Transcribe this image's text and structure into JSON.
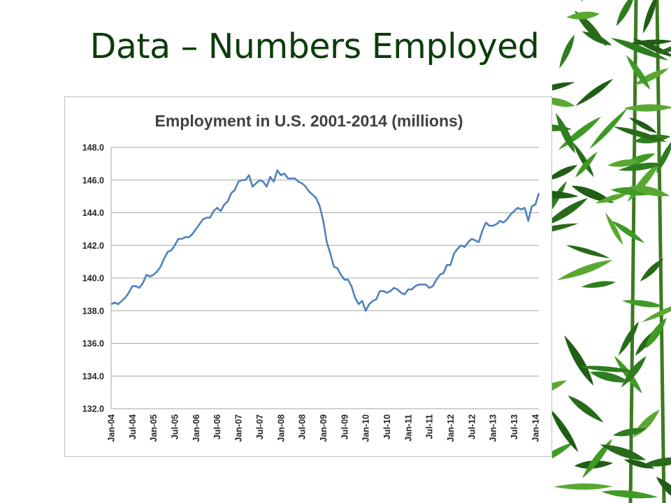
{
  "slide": {
    "title": "Data – Numbers Employed"
  },
  "colors": {
    "title": "#0b3d0b",
    "line": "#4f81bd",
    "grid": "#a6a6a6",
    "bamboo": "#2e7d1e"
  },
  "decoration": {
    "icon": "bamboo-leaves-icon"
  },
  "chart_data": {
    "type": "line",
    "title": "Employment in U.S. 2001-2014 (millions)",
    "xlabel": "",
    "ylabel": "",
    "ylim": [
      132,
      148
    ],
    "yticks": [
      "148.0",
      "146.0",
      "144.0",
      "142.0",
      "140.0",
      "138.0",
      "136.0",
      "134.0",
      "132.0"
    ],
    "xticks": [
      "Jan-04",
      "Jul-04",
      "Jan-05",
      "Jul-05",
      "Jan-06",
      "Jul-06",
      "Jan-07",
      "Jul-07",
      "Jan-08",
      "Jul-08",
      "Jan-09",
      "Jul-09",
      "Jan-10",
      "Jul-10",
      "Jan-11",
      "Jul-11",
      "Jan-12",
      "Jul-12",
      "Jan-13",
      "Jul-13",
      "Jan-14"
    ],
    "grid": true,
    "legend": "none",
    "series": [
      {
        "values": [
          138.4,
          138.5,
          138.4,
          138.6,
          138.8,
          139.1,
          139.5,
          139.5,
          139.4,
          139.7,
          140.2,
          140.1,
          140.2,
          140.4,
          140.7,
          141.2,
          141.6,
          141.7,
          142.0,
          142.4,
          142.4,
          142.5,
          142.5,
          142.7,
          143.0,
          143.3,
          143.6,
          143.7,
          143.7,
          144.1,
          144.3,
          144.1,
          144.5,
          144.7,
          145.2,
          145.4,
          145.9,
          146.0,
          146.0,
          146.3,
          145.6,
          145.8,
          146.0,
          145.9,
          145.6,
          146.2,
          145.9,
          146.6,
          146.3,
          146.4,
          146.1,
          146.1,
          146.1,
          145.9,
          145.8,
          145.6,
          145.3,
          145.1,
          144.9,
          144.4,
          143.5,
          142.2,
          141.5,
          140.7,
          140.6,
          140.2,
          139.9,
          139.9,
          139.5,
          138.8,
          138.4,
          138.6,
          138.0,
          138.4,
          138.6,
          138.7,
          139.2,
          139.2,
          139.1,
          139.2,
          139.4,
          139.3,
          139.1,
          139.0,
          139.3,
          139.3,
          139.5,
          139.6,
          139.6,
          139.6,
          139.4,
          139.5,
          139.9,
          140.2,
          140.3,
          140.8,
          140.8,
          141.5,
          141.8,
          142.0,
          141.9,
          142.2,
          142.4,
          142.3,
          142.2,
          142.9,
          143.4,
          143.2,
          143.2,
          143.3,
          143.5,
          143.4,
          143.6,
          143.9,
          144.1,
          144.3,
          144.2,
          144.3,
          143.5,
          144.4,
          144.5,
          145.2
        ]
      }
    ]
  }
}
